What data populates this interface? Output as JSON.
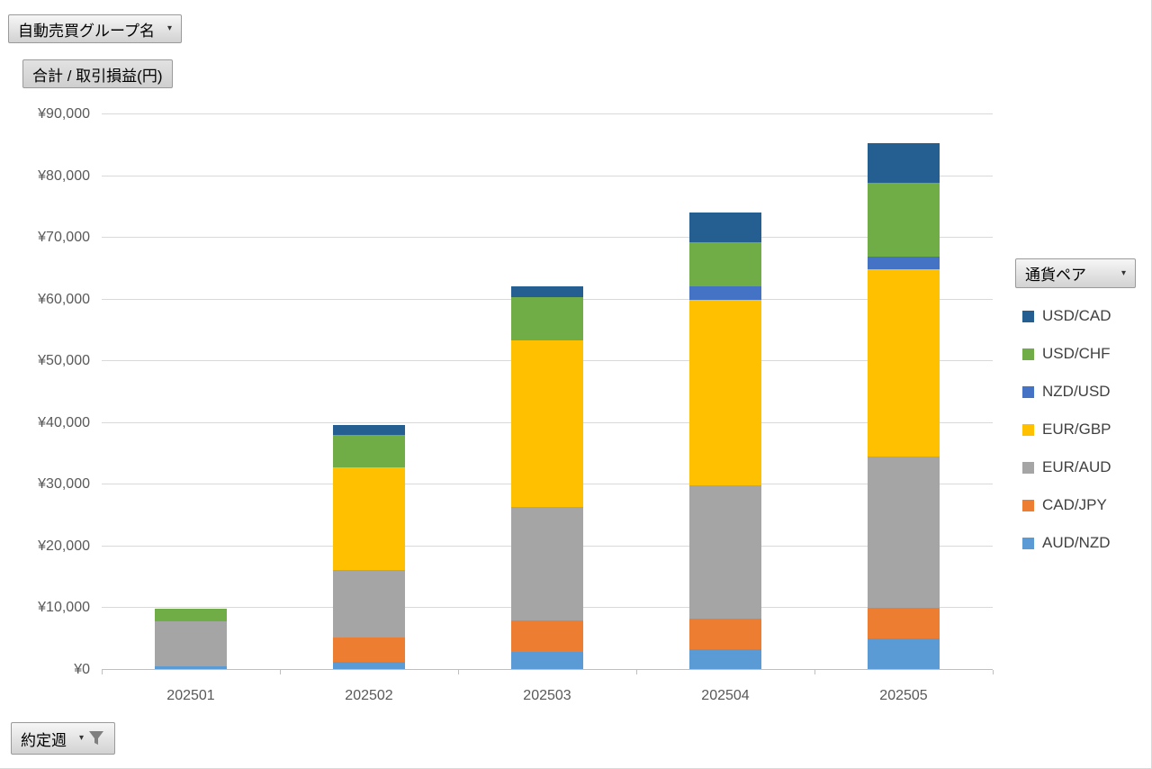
{
  "field_buttons": {
    "group_name": {
      "label": "自動売買グループ名",
      "arrow": "▾"
    },
    "value_field": {
      "label": "合計 / 取引損益(円)"
    },
    "legend_field": {
      "label": "通貨ペア",
      "arrow": "▾"
    },
    "axis_field": {
      "label": "約定週",
      "arrow": "▾",
      "icon": "filter-funnel-icon"
    }
  },
  "chart_data": {
    "type": "bar",
    "stacked": true,
    "categories": [
      "202501",
      "202502",
      "202503",
      "202504",
      "202505"
    ],
    "series": [
      {
        "name": "AUD/NZD",
        "color": "#5B9BD5",
        "values": [
          500,
          1100,
          2800,
          3200,
          5000
        ]
      },
      {
        "name": "CAD/JPY",
        "color": "#ED7D31",
        "values": [
          0,
          4000,
          5100,
          5000,
          4900
        ]
      },
      {
        "name": "EUR/AUD",
        "color": "#A5A5A5",
        "values": [
          7200,
          10900,
          18400,
          21500,
          24500
        ]
      },
      {
        "name": "EUR/GBP",
        "color": "#FFC000",
        "values": [
          0,
          16700,
          27000,
          30100,
          30400
        ]
      },
      {
        "name": "NZD/USD",
        "color": "#4472C4",
        "values": [
          0,
          0,
          0,
          2200,
          2000
        ]
      },
      {
        "name": "USD/CHF",
        "color": "#70AD47",
        "values": [
          2100,
          5300,
          6900,
          7200,
          11900
        ]
      },
      {
        "name": "USD/CAD",
        "color": "#255E91",
        "values": [
          0,
          1500,
          1800,
          4700,
          6500
        ]
      }
    ],
    "y_axis": {
      "min": 0,
      "max": 90000,
      "step": 10000,
      "tick_labels": [
        "¥0",
        "¥10,000",
        "¥20,000",
        "¥30,000",
        "¥40,000",
        "¥50,000",
        "¥60,000",
        "¥70,000",
        "¥80,000",
        "¥90,000"
      ]
    },
    "xlabel": "約定週",
    "ylabel": "合計 / 取引損益(円)",
    "legend_title": "通貨ペア",
    "legend_position": "right",
    "legend_order": "top-to-bottom reverse of stacking",
    "grid": true
  },
  "colors": {
    "gridline": "#D9D9D9",
    "axis_line": "#BFBFBF",
    "tick_text": "#595959",
    "legend_text": "#404040"
  }
}
